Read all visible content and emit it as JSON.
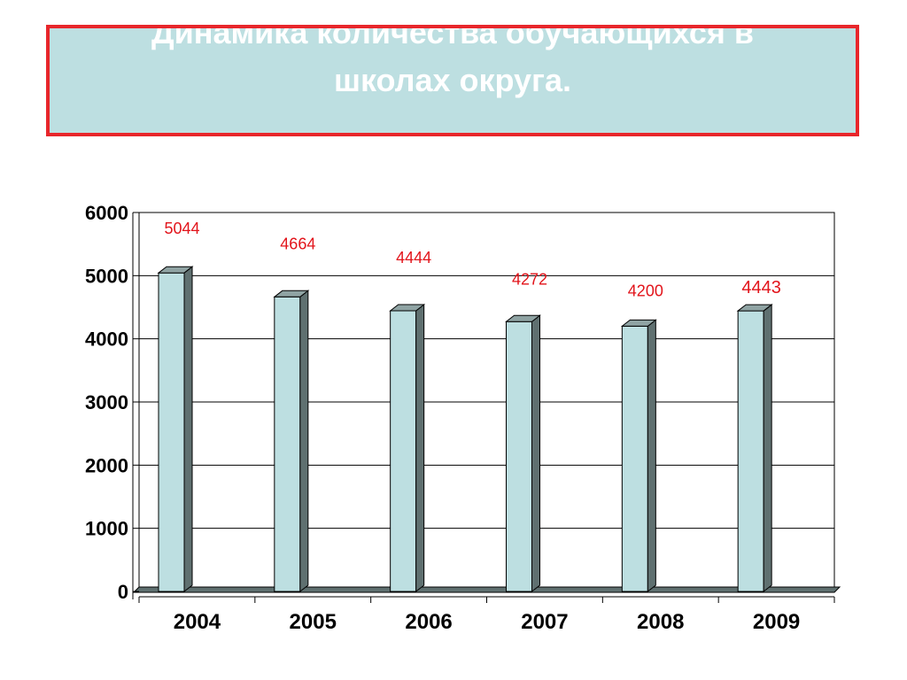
{
  "slide": {
    "title": "Динамика количества  обучающихся в\nшколах округа."
  },
  "colors": {
    "title_bg": "#bddfe1",
    "title_border": "#e8262b",
    "title_text": "#ffffff",
    "bar_front": "#bddfe1",
    "bar_side": "#5f7070",
    "bar_top": "#8fa3a3",
    "floor": "#5f7070",
    "data_label": "#e2141b",
    "axis_text": "#000000"
  },
  "chart_data": {
    "type": "bar",
    "style": "3d",
    "categories": [
      "2004",
      "2005",
      "2006",
      "2007",
      "2008",
      "2009"
    ],
    "values": [
      5044,
      4664,
      4444,
      4272,
      4200,
      4443
    ],
    "data_labels": [
      "5044",
      "4664",
      "4444",
      "4272",
      "4200",
      "4443"
    ],
    "yticks": [
      "0",
      "1000",
      "2000",
      "3000",
      "4000",
      "5000",
      "6000"
    ],
    "ylim": [
      0,
      6000
    ],
    "grid": true,
    "legend": "none"
  }
}
